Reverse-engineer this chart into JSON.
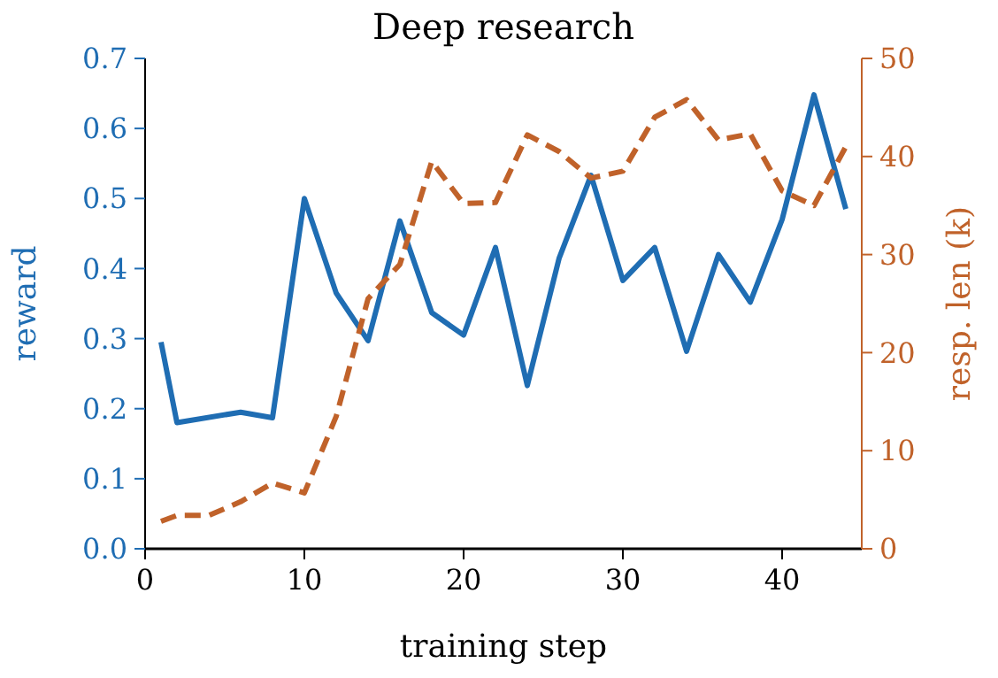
{
  "chart_data": {
    "type": "line",
    "title": "Deep research",
    "xlabel": "training step",
    "ylabel": "reward",
    "y2label": "resp. len (k)",
    "xlim": [
      0,
      45
    ],
    "xticks": [
      0,
      10,
      20,
      30,
      40
    ],
    "ylim": [
      0,
      0.7
    ],
    "yticks": [
      {
        "value": 0,
        "label": "0.0"
      },
      0.1,
      0.2,
      0.3,
      0.4,
      0.5,
      0.6,
      0.7
    ],
    "y2lim": [
      0,
      50
    ],
    "y2ticks": [
      0,
      10,
      20,
      30,
      40,
      50
    ],
    "grid": false,
    "series": [
      {
        "x": [
          1,
          2,
          6,
          8,
          10,
          12,
          14,
          16,
          18,
          20,
          22,
          24,
          26,
          28,
          30,
          32,
          34,
          36,
          38,
          40,
          42,
          44
        ],
        "values": [
          0.295,
          0.18,
          0.195,
          0.187,
          0.5,
          0.365,
          0.297,
          0.468,
          0.337,
          0.305,
          0.43,
          0.233,
          0.415,
          0.533,
          0.383,
          0.43,
          0.282,
          0.42,
          0.352,
          0.47,
          0.648,
          0.485
        ],
        "color": "#1f6db3",
        "line_style": "solid"
      },
      {
        "x": [
          1,
          2,
          4,
          6,
          8,
          10,
          12,
          14,
          16,
          18,
          20,
          22,
          24,
          26,
          28,
          30,
          32,
          34,
          36,
          38,
          40,
          42,
          44
        ],
        "values": [
          2.8,
          3.4,
          3.4,
          4.8,
          6.7,
          5.7,
          13.5,
          25.5,
          29,
          39.5,
          35.2,
          35.3,
          42.2,
          40.5,
          37.8,
          38.5,
          44,
          45.8,
          41.7,
          42.3,
          36.5,
          35,
          41
        ],
        "color": "#c0622a",
        "axis": "y2",
        "line_style": "dashed"
      }
    ]
  }
}
